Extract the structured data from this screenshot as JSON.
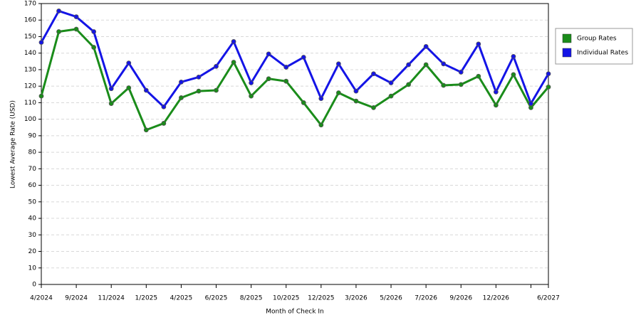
{
  "chart_data": {
    "type": "line",
    "x_label": "Month of Check In",
    "y_label": "Lowest Average Rate (USD)",
    "categories": [
      "4/2024",
      null,
      "9/2024",
      null,
      "11/2024",
      null,
      "1/2025",
      null,
      "4/2025",
      null,
      "6/2025",
      null,
      "8/2025",
      null,
      "10/2025",
      null,
      "12/2025",
      null,
      "3/2026",
      null,
      "5/2026",
      null,
      "7/2026",
      null,
      "9/2026",
      null,
      "12/2026",
      null,
      null,
      "6/2027"
    ],
    "series": [
      {
        "name": "Group Rates",
        "color": "#1a8c1a",
        "values": [
          114,
          153,
          154.5,
          143.5,
          109.5,
          119,
          93.5,
          97.5,
          113,
          117,
          117.5,
          134.5,
          114,
          124.5,
          123,
          110,
          96.5,
          116,
          111,
          107,
          114,
          121,
          133,
          120.5,
          121,
          126,
          108.5,
          127,
          107,
          119.5
        ]
      },
      {
        "name": "Individual Rates",
        "color": "#1414e6",
        "values": [
          146.5,
          165.5,
          162,
          153,
          118.5,
          134,
          117.5,
          107.5,
          122.5,
          125.5,
          132,
          147,
          122,
          139.5,
          131.5,
          137.5,
          112.5,
          133.5,
          117,
          127.5,
          122,
          133,
          144,
          133.5,
          128.5,
          145.5,
          116.5,
          138,
          109.5,
          127.5
        ]
      }
    ],
    "ylim": [
      0,
      170
    ],
    "yticks": [
      0,
      10,
      20,
      30,
      40,
      50,
      60,
      70,
      80,
      90,
      100,
      110,
      120,
      130,
      140,
      150,
      160,
      170
    ],
    "grid": true,
    "legend": "right"
  }
}
